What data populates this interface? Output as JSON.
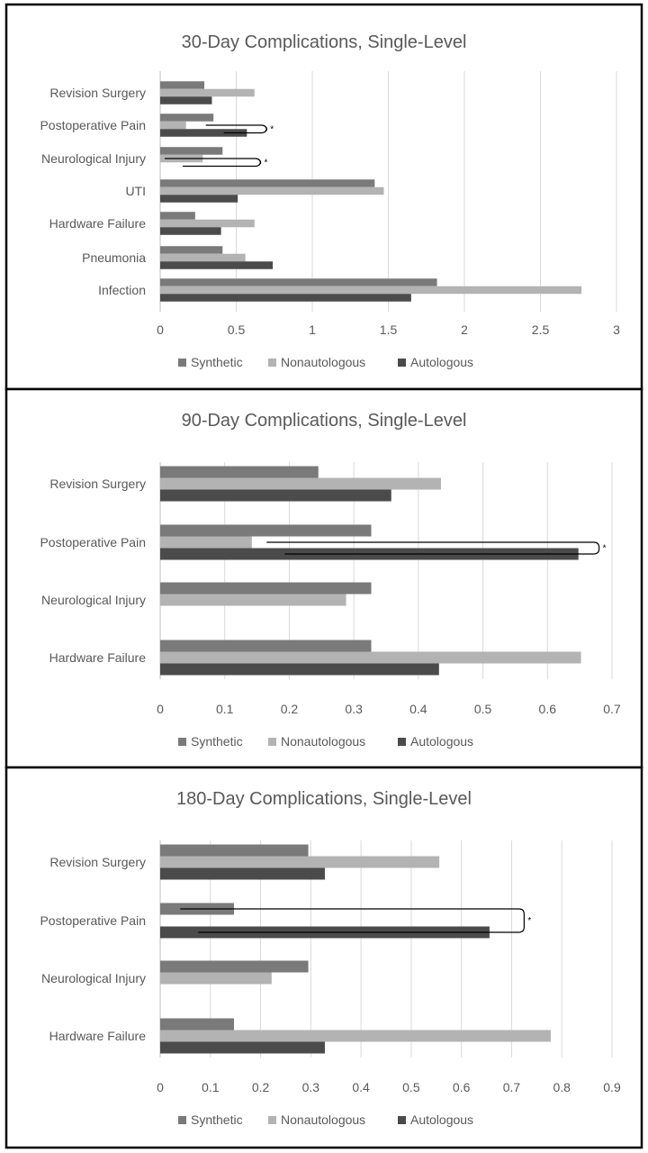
{
  "chart_data": [
    {
      "type": "bar",
      "orientation": "horizontal",
      "title": "30-Day Complications, Single-Level",
      "categories": [
        "Revision Surgery",
        "Postoperative Pain",
        "Neurological Injury",
        "UTI",
        "Hardware Failure",
        "Pneumonia",
        "Infection"
      ],
      "series": [
        {
          "name": "Synthetic",
          "values": [
            0.29,
            0.35,
            0.41,
            1.41,
            0.23,
            0.41,
            1.82
          ]
        },
        {
          "name": "Nonautologous",
          "values": [
            0.62,
            0.17,
            0.28,
            1.47,
            0.62,
            0.56,
            2.77
          ]
        },
        {
          "name": "Autologous",
          "values": [
            0.34,
            0.57,
            0.0,
            0.51,
            0.4,
            0.74,
            1.65
          ]
        }
      ],
      "xlim": [
        0,
        3
      ],
      "xticks": [
        "0",
        "0.5",
        "1",
        "1.5",
        "2",
        "2.5",
        "3"
      ],
      "annotation": "*",
      "legend_position": "bottom",
      "grid": "vertical"
    },
    {
      "type": "bar",
      "orientation": "horizontal",
      "title": "90-Day Complications, Single-Level",
      "categories": [
        "Revision Surgery",
        "Postoperative Pain",
        "Neurological Injury",
        "Hardware Failure"
      ],
      "series": [
        {
          "name": "Synthetic",
          "values": [
            0.245,
            0.327,
            0.327,
            0.327
          ]
        },
        {
          "name": "Nonautologous",
          "values": [
            0.435,
            0.142,
            0.288,
            0.652
          ]
        },
        {
          "name": "Autologous",
          "values": [
            0.358,
            0.648,
            0.0,
            0.432
          ]
        }
      ],
      "xlim": [
        0,
        0.7
      ],
      "xticks": [
        "0",
        "0.1",
        "0.2",
        "0.3",
        "0.4",
        "0.5",
        "0.6",
        "0.7"
      ],
      "annotation": "*",
      "legend_position": "bottom",
      "grid": "vertical"
    },
    {
      "type": "bar",
      "orientation": "horizontal",
      "title": "180-Day Complications, Single-Level",
      "categories": [
        "Revision Surgery",
        "Postoperative Pain",
        "Neurological Injury",
        "Hardware Failure"
      ],
      "series": [
        {
          "name": "Synthetic",
          "values": [
            0.295,
            0.147,
            0.295,
            0.147
          ]
        },
        {
          "name": "Nonautologous",
          "values": [
            0.556,
            0.0,
            0.222,
            0.778
          ]
        },
        {
          "name": "Autologous",
          "values": [
            0.328,
            0.656,
            0.0,
            0.328
          ]
        }
      ],
      "xlim": [
        0,
        0.9
      ],
      "xticks": [
        "0",
        "0.1",
        "0.2",
        "0.3",
        "0.4",
        "0.5",
        "0.6",
        "0.7",
        "0.8",
        "0.9"
      ],
      "annotation": "*",
      "legend_position": "bottom",
      "grid": "vertical"
    }
  ],
  "colors": {
    "Synthetic": "#7a7a7a",
    "Nonautologous": "#b3b3b3",
    "Autologous": "#4b4b4b",
    "grid": "#d9d9d9",
    "text": "#595959",
    "border": "#000000"
  }
}
